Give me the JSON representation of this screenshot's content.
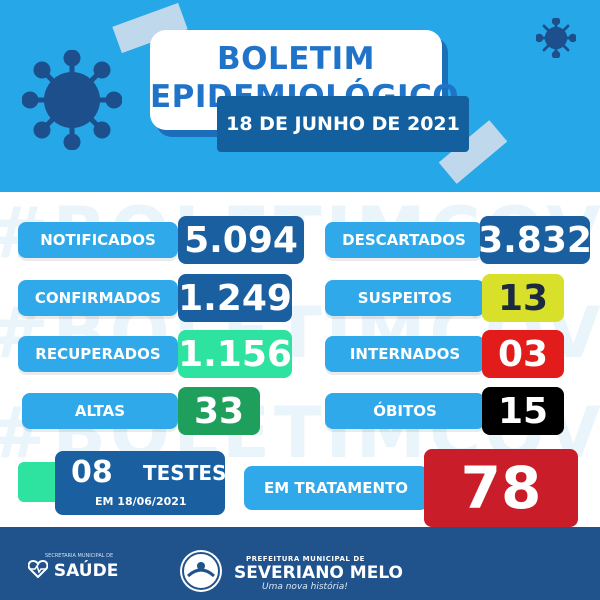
{
  "header": {
    "title_line1": "BOLETIM",
    "title_line2": "EPIDEMIOLÓGICO",
    "date": "18 DE JUNHO DE 2021"
  },
  "watermark": "#BOLETIMCOVID19",
  "stats": {
    "notificados": {
      "label": "NOTIFICADOS",
      "value": "5.094"
    },
    "descartados": {
      "label": "DESCARTADOS",
      "value": "3.832"
    },
    "confirmados": {
      "label": "CONFIRMADOS",
      "value": "1.249"
    },
    "suspeitos": {
      "label": "SUSPEITOS",
      "value": "13"
    },
    "recuperados": {
      "label": "RECUPERADOS",
      "value": "1.156"
    },
    "internados": {
      "label": "INTERNADOS",
      "value": "03"
    },
    "altas": {
      "label": "ALTAS",
      "value": "33"
    },
    "obitos": {
      "label": "ÓBITOS",
      "value": "15"
    }
  },
  "testes": {
    "value": "08",
    "label": "TESTES",
    "sub": "EM 18/06/2021"
  },
  "tratamento": {
    "label": "EM TRATAMENTO",
    "value": "78"
  },
  "footer": {
    "saude_small": "SECRETARIA MUNICIPAL DE",
    "saude": "SAÚDE",
    "pref_top": "PREFEITURA MUNICIPAL DE",
    "pref_name": "SEVERIANO MELO",
    "pref_slogan": "Uma nova história!"
  },
  "colors": {
    "header_blue": "#26a7e8",
    "navy": "#1a5fa0",
    "green": "#1e9f5c",
    "mint": "#2ee2a0",
    "yellow": "#d8e02a",
    "red": "#e21b1b",
    "dark_red": "#c91e2a",
    "footer": "#20528c"
  }
}
